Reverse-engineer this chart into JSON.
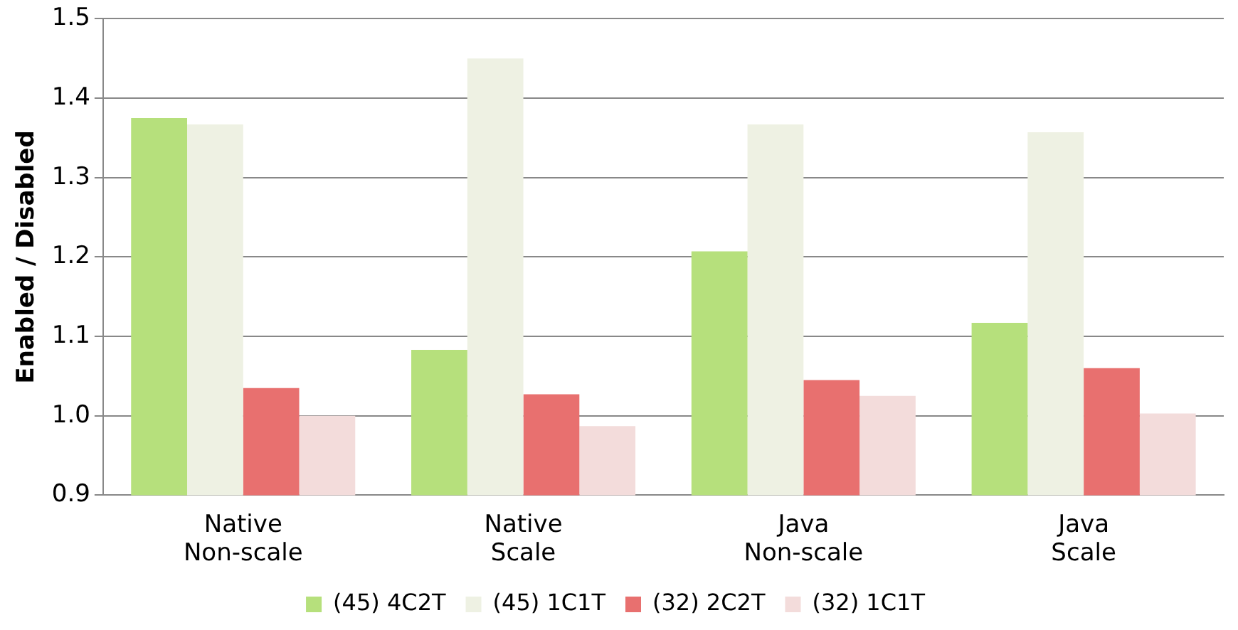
{
  "chart_data": {
    "type": "bar",
    "ylabel": "Enabled / Disabled",
    "categories": [
      "Native Non-scale",
      "Native Scale",
      "Java Non-scale",
      "Java Scale"
    ],
    "series": [
      {
        "name": "(45) 4C2T",
        "color": "#b6e07c",
        "values": [
          1.375,
          1.083,
          1.207,
          1.117
        ]
      },
      {
        "name": "(45) 1C1T",
        "color": "#eef1e3",
        "values": [
          1.367,
          1.45,
          1.367,
          1.357
        ]
      },
      {
        "name": "(32) 2C2T",
        "color": "#e8706f",
        "values": [
          1.035,
          1.027,
          1.045,
          1.06
        ]
      },
      {
        "name": "(32) 1C1T",
        "color": "#f3dcdb",
        "values": [
          1.0,
          0.987,
          1.025,
          1.003
        ]
      }
    ],
    "ylim": [
      0.9,
      1.5
    ],
    "yticks": [
      0.9,
      {
        "value": 1,
        "label": "1.0"
      },
      1.1,
      1.2,
      1.3,
      1.4,
      1.5
    ],
    "grid": "y",
    "legend": "bottom"
  }
}
